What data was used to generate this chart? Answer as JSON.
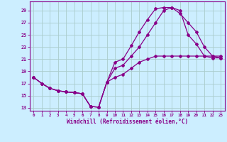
{
  "background_color": "#cceeff",
  "grid_color": "#aacccc",
  "line_color": "#880088",
  "xlabel": "Windchill (Refroidissement éolien,°C)",
  "xlim": [
    -0.5,
    23.5
  ],
  "ylim": [
    12.5,
    30.5
  ],
  "yticks": [
    13,
    15,
    17,
    19,
    21,
    23,
    25,
    27,
    29
  ],
  "xticks": [
    0,
    1,
    2,
    3,
    4,
    5,
    6,
    7,
    8,
    9,
    10,
    11,
    12,
    13,
    14,
    15,
    16,
    17,
    18,
    19,
    20,
    21,
    22,
    23
  ],
  "curve1_x": [
    0,
    1,
    2,
    3,
    4,
    5,
    6,
    7,
    8,
    9,
    10,
    11,
    12,
    13,
    14,
    15,
    16,
    17,
    18,
    19,
    20,
    21,
    22,
    23
  ],
  "curve1_y": [
    18.0,
    17.0,
    16.2,
    15.8,
    15.6,
    15.5,
    15.3,
    13.2,
    13.1,
    17.2,
    20.5,
    21.0,
    23.2,
    25.5,
    27.5,
    29.3,
    29.5,
    29.5,
    29.0,
    25.0,
    23.5,
    21.5,
    21.2,
    21.2
  ],
  "curve2_x": [
    0,
    1,
    2,
    3,
    4,
    5,
    6,
    7,
    8,
    9,
    10,
    11,
    12,
    13,
    14,
    15,
    16,
    17,
    18,
    19,
    20,
    21,
    22,
    23
  ],
  "curve2_y": [
    18.0,
    17.0,
    16.2,
    15.8,
    15.6,
    15.5,
    15.3,
    13.2,
    13.1,
    17.2,
    19.5,
    20.0,
    21.5,
    23.0,
    25.0,
    27.0,
    29.0,
    29.5,
    28.5,
    27.0,
    25.5,
    23.0,
    21.5,
    21.2
  ],
  "curve3_x": [
    0,
    1,
    2,
    3,
    4,
    5,
    6,
    7,
    8,
    9,
    10,
    11,
    12,
    13,
    14,
    15,
    16,
    17,
    18,
    19,
    20,
    21,
    22,
    23
  ],
  "curve3_y": [
    18.0,
    17.0,
    16.2,
    15.8,
    15.6,
    15.5,
    15.3,
    13.2,
    13.1,
    17.2,
    18.0,
    18.5,
    19.5,
    20.5,
    21.0,
    21.5,
    21.5,
    21.5,
    21.5,
    21.5,
    21.5,
    21.5,
    21.5,
    21.5
  ]
}
